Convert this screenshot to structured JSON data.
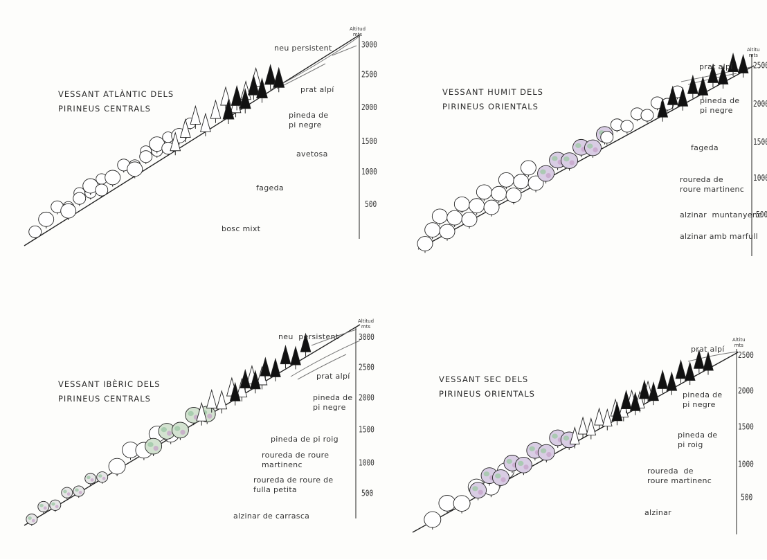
{
  "panels": [
    {
      "id": "p1",
      "title_lines": [
        "VESSANT ATLÀNTIC DELS",
        "PIRINEUS CENTRALS"
      ],
      "axis_head": [
        "Altitud",
        "mts"
      ],
      "ticks": [
        "3000",
        "2500",
        "2000",
        "1500",
        "1000",
        "500"
      ],
      "zones": [
        "neu persistent",
        "prat alpí",
        "pineda de\npi negre",
        "avetosa",
        "fageda",
        "bosc mixt"
      ]
    },
    {
      "id": "p2",
      "title_lines": [
        "VESSANT HUMIT DELS",
        "PIRINEUS ORIENTALS"
      ],
      "axis_head": [
        "Altitu",
        "mts"
      ],
      "ticks": [
        "2500",
        "2000",
        "1500",
        "1000",
        "500"
      ],
      "zones": [
        "prat alpí",
        "pineda de\npi negre",
        "fageda",
        "roureda de\nroure martinenc",
        "alzinar  muntanyenc",
        "alzinar amb marfull"
      ]
    },
    {
      "id": "p3",
      "title_lines": [
        "VESSANT IBÈRIC DELS",
        "PIRINEUS CENTRALS"
      ],
      "axis_head": [
        "Altitud",
        "mts"
      ],
      "ticks": [
        "3000",
        "2500",
        "2000",
        "1500",
        "1000",
        "500"
      ],
      "zones": [
        "neu  persistent",
        "prat alpí",
        "pineda de\npi negre",
        "pineda de pi roig",
        "roureda de roure\nmartinenc",
        "roureda de roure de\nfulla petita",
        "alzinar de carrasca"
      ]
    },
    {
      "id": "p4",
      "title_lines": [
        "VESSANT  SEC  DELS",
        "PIRINEUS ORIENTALS"
      ],
      "axis_head": [
        "Altitu",
        "mts"
      ],
      "ticks": [
        "2500",
        "2000",
        "1500",
        "1000",
        "500"
      ],
      "zones": [
        "prat alpí",
        "pineda de\npi negre",
        "pineda de\npi roig",
        "roureda  de\nroure martinenc",
        "alzinar"
      ]
    }
  ]
}
